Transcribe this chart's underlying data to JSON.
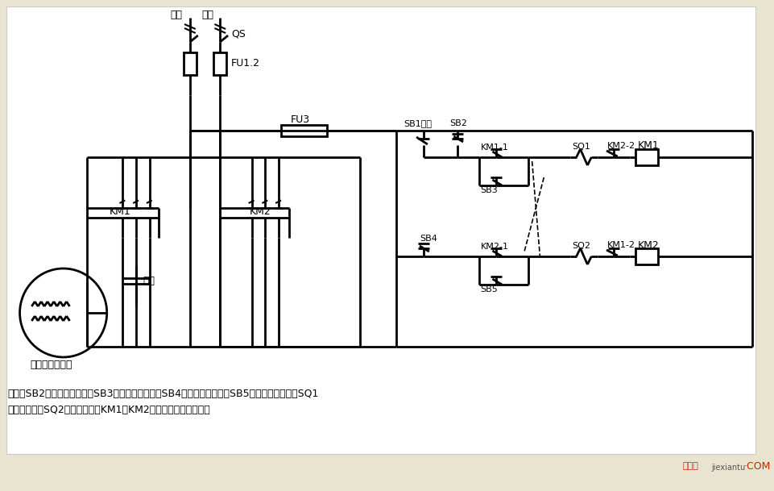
{
  "bg_color": "#e8e4d0",
  "lw": 2.0,
  "label_hx": "火线",
  "label_lx": "零线",
  "label_QS": "QS",
  "label_FU12": "FU1.2",
  "label_FU3": "FU3",
  "label_SB1": "SB1停止",
  "label_SB2": "SB2",
  "label_KM11": "KM1-1",
  "label_KM21": "KM2-1",
  "label_SQ1": "SQ1",
  "label_SQ2": "SQ2",
  "label_KM1_coil": "KM1",
  "label_KM2_coil": "KM2",
  "label_KM22": "KM2-2",
  "label_KM12": "KM1-2",
  "label_SB3": "SB3",
  "label_SB4": "SB4",
  "label_SB5": "SB5",
  "label_KM1_main": "KM1",
  "label_KM2_main": "KM2",
  "label_capacitor": "电容",
  "label_motor": "单相电容电动机",
  "note_line1": "说明：SB2为上升启动按钮，SB3为上升点动按钮，SB4为下降启动按钮，SB5为下降点动按钮；SQ1",
  "note_line2": "为最高限位，SQ2为最低限位。KM1、KM2可用中间继电器代替。",
  "wm_red": "接线图",
  "wm_gray": "jiexiantu",
  "wm_red2": "·COM"
}
